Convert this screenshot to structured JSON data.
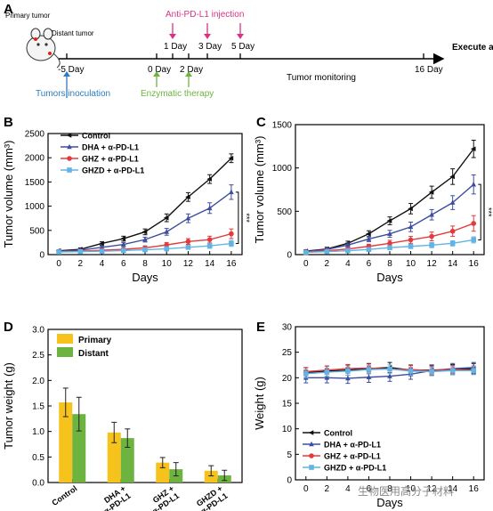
{
  "colors": {
    "control": "#111111",
    "dha": "#3d4ea0",
    "ghz": "#e33b3b",
    "ghzd": "#62b4e6",
    "primary_bar": "#f6c21c",
    "distant_bar": "#6db33f",
    "injection": "#d63384",
    "inoculation": "#2e7bbf",
    "enzymatic": "#6db33f"
  },
  "panel_a": {
    "letter": "A",
    "mouse_label_primary": "Primary tumor",
    "mouse_label_distant": "Distant tumor",
    "injection_label": "Anti-PD-L1 injection",
    "timeline_labels": [
      "-5 Day",
      "0 Day",
      "1 Day",
      "2 Day",
      "3 Day",
      "5 Day",
      "16 Day"
    ],
    "monitoring_label": "Tumor monitoring",
    "end_label": "Execute and analysis",
    "inoculation_label": "Tumors inoculation",
    "enzymatic_label": "Enzymatic therapy"
  },
  "panel_labels": {
    "b": "B",
    "c": "C",
    "d": "D",
    "e": "E"
  },
  "watermark": "生物医用高分子材料",
  "chart_data": [
    {
      "panel": "B",
      "type": "line",
      "xlabel": "Days",
      "ylabel": "Tumor volume (mm³)",
      "x": [
        0,
        2,
        4,
        6,
        8,
        10,
        12,
        14,
        16
      ],
      "xlim": [
        -1,
        17
      ],
      "ylim": [
        0,
        2500
      ],
      "xticks": [
        "0",
        "2",
        "4",
        "6",
        "8",
        "10",
        "12",
        "14",
        "16"
      ],
      "yticks": [
        "0",
        "500",
        "1000",
        "1500",
        "2000",
        "2500"
      ],
      "significance": "***",
      "legend_placement": "top-left",
      "series": [
        {
          "name": "Control",
          "values": [
            80,
            110,
            230,
            330,
            470,
            760,
            1190,
            1560,
            1990
          ],
          "errors": [
            20,
            30,
            35,
            50,
            60,
            80,
            90,
            90,
            90
          ]
        },
        {
          "name": "DHA + α-PD-L1",
          "values": [
            70,
            90,
            150,
            210,
            310,
            470,
            750,
            960,
            1290
          ],
          "errors": [
            15,
            25,
            30,
            40,
            50,
            70,
            90,
            110,
            150
          ]
        },
        {
          "name": "GHZ + α-PD-L1",
          "values": [
            60,
            70,
            90,
            110,
            140,
            200,
            270,
            310,
            430
          ],
          "errors": [
            15,
            20,
            25,
            30,
            40,
            50,
            60,
            70,
            100
          ]
        },
        {
          "name": "GHZD + α-PD-L1",
          "values": [
            55,
            60,
            70,
            85,
            100,
            120,
            150,
            180,
            230
          ],
          "errors": [
            10,
            15,
            20,
            25,
            30,
            35,
            40,
            50,
            60
          ]
        }
      ]
    },
    {
      "panel": "C",
      "type": "line",
      "xlabel": "Days",
      "ylabel": "Tumor volume (mm³)",
      "x": [
        0,
        2,
        4,
        6,
        8,
        10,
        12,
        14,
        16
      ],
      "xlim": [
        -1,
        17
      ],
      "ylim": [
        0,
        1500
      ],
      "xticks": [
        "0",
        "2",
        "4",
        "6",
        "8",
        "10",
        "12",
        "14",
        "16"
      ],
      "yticks": [
        "0",
        "500",
        "1000",
        "1500"
      ],
      "significance": "***",
      "series": [
        {
          "name": "Control",
          "values": [
            40,
            65,
            130,
            240,
            390,
            530,
            720,
            900,
            1220
          ],
          "errors": [
            15,
            20,
            25,
            35,
            45,
            60,
            70,
            90,
            100
          ]
        },
        {
          "name": "DHA + α-PD-L1",
          "values": [
            35,
            60,
            110,
            180,
            240,
            320,
            460,
            600,
            810
          ],
          "errors": [
            12,
            18,
            25,
            30,
            40,
            55,
            60,
            80,
            110
          ]
        },
        {
          "name": "GHZ + α-PD-L1",
          "values": [
            30,
            45,
            65,
            95,
            130,
            170,
            210,
            270,
            360
          ],
          "errors": [
            10,
            15,
            20,
            25,
            35,
            40,
            50,
            60,
            90
          ]
        },
        {
          "name": "GHZD + α-PD-L1",
          "values": [
            25,
            35,
            45,
            60,
            80,
            95,
            110,
            130,
            170
          ],
          "errors": [
            8,
            10,
            15,
            18,
            20,
            25,
            30,
            30,
            35
          ]
        }
      ]
    },
    {
      "panel": "D",
      "type": "bar",
      "ylabel": "Tumor weight (g)",
      "categories": [
        "Control",
        "DHA + α-PD-L1",
        "GHZ + α-PD-L1",
        "GHZD + α-PD-L1"
      ],
      "ylim": [
        0,
        3.0
      ],
      "yticks": [
        "0.0",
        "0.5",
        "1.0",
        "1.5",
        "2.0",
        "2.5",
        "3.0"
      ],
      "legend_placement": "top-left",
      "series": [
        {
          "name": "Primary",
          "values": [
            1.57,
            0.98,
            0.39,
            0.23
          ],
          "errors": [
            0.28,
            0.2,
            0.1,
            0.1
          ]
        },
        {
          "name": "Distant",
          "values": [
            1.34,
            0.87,
            0.26,
            0.14
          ],
          "errors": [
            0.33,
            0.18,
            0.13,
            0.1
          ]
        }
      ]
    },
    {
      "panel": "E",
      "type": "line",
      "xlabel": "Days",
      "ylabel": "Weight (g)",
      "x": [
        0,
        2,
        4,
        6,
        8,
        10,
        12,
        14,
        16
      ],
      "xlim": [
        -1,
        17
      ],
      "ylim": [
        0,
        30
      ],
      "xticks": [
        "0",
        "2",
        "4",
        "6",
        "8",
        "10",
        "12",
        "14",
        "16"
      ],
      "yticks": [
        "0",
        "5",
        "10",
        "15",
        "20",
        "25",
        "30"
      ],
      "legend_placement": "bottom-left",
      "series": [
        {
          "name": "Control",
          "values": [
            21.0,
            21.3,
            21.5,
            21.8,
            22.0,
            21.5,
            21.5,
            21.6,
            21.8
          ],
          "errors": [
            1.0,
            1.0,
            1.0,
            1.0,
            1.0,
            1.0,
            1.0,
            1.0,
            1.0
          ]
        },
        {
          "name": "DHA + α-PD-L1",
          "values": [
            20.0,
            20.0,
            19.9,
            20.1,
            20.3,
            20.7,
            21.4,
            21.8,
            22.0
          ],
          "errors": [
            1.0,
            1.0,
            1.0,
            1.0,
            1.0,
            1.0,
            1.0,
            1.0,
            1.0
          ]
        },
        {
          "name": "GHZ + α-PD-L1",
          "values": [
            21.2,
            21.5,
            21.8,
            21.9,
            21.7,
            21.6,
            21.4,
            21.6,
            21.5
          ],
          "errors": [
            0.8,
            0.8,
            0.8,
            0.8,
            0.8,
            0.8,
            0.8,
            0.8,
            0.8
          ]
        },
        {
          "name": "GHZD + α-PD-L1",
          "values": [
            20.8,
            21.1,
            21.3,
            21.6,
            21.7,
            21.3,
            21.2,
            21.4,
            21.4
          ],
          "errors": [
            0.8,
            0.8,
            0.8,
            0.8,
            0.8,
            0.8,
            0.8,
            0.8,
            0.8
          ]
        }
      ]
    }
  ]
}
